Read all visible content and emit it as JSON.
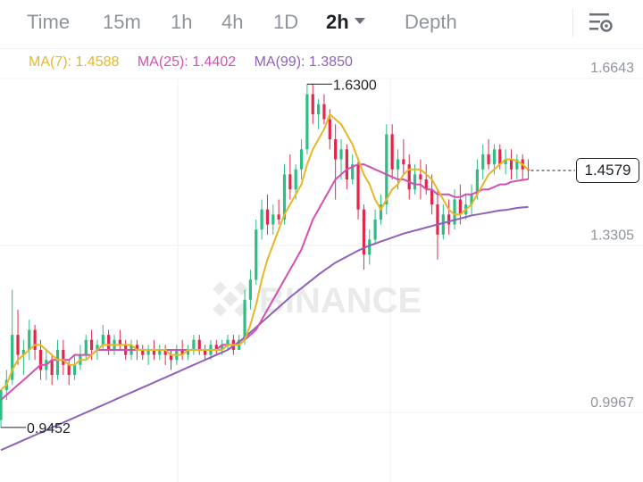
{
  "tabs": [
    {
      "label": "Time",
      "active": false
    },
    {
      "label": "15m",
      "active": false
    },
    {
      "label": "1h",
      "active": false
    },
    {
      "label": "4h",
      "active": false
    },
    {
      "label": "1D",
      "active": false
    },
    {
      "label": "2h",
      "active": true
    },
    {
      "label": "Depth",
      "active": false
    }
  ],
  "settings_icon": "chart-settings-icon",
  "ma_indicators": [
    {
      "label": "MA(7): 1.4588",
      "color": "#e8b726"
    },
    {
      "label": "MA(25): 1.4402",
      "color": "#d44fb4"
    },
    {
      "label": "MA(99): 1.3850",
      "color": "#8f62b8"
    }
  ],
  "watermark": "BINANCE",
  "current_price": "1.4579",
  "colors": {
    "up": "#2ebd85",
    "down": "#e0294a",
    "ma7": "#e8b726",
    "ma25": "#d44fb4",
    "ma99": "#8f62b8"
  },
  "chart_data": {
    "type": "candlestick",
    "y_axis_ticks": [
      "1.6643",
      "1.3305",
      "0.9967"
    ],
    "annotations": [
      {
        "label": "1.6300",
        "kind": "high",
        "value": 1.63
      },
      {
        "label": "0.9452",
        "kind": "low",
        "value": 0.9452
      }
    ],
    "current_price": 1.4579,
    "ohlc": [
      [
        0.96,
        1.02,
        0.945,
        1.02
      ],
      [
        1.02,
        1.06,
        1.0,
        1.04
      ],
      [
        1.04,
        1.22,
        1.03,
        1.13
      ],
      [
        1.13,
        1.18,
        1.07,
        1.09
      ],
      [
        1.09,
        1.12,
        1.05,
        1.1
      ],
      [
        1.1,
        1.16,
        1.08,
        1.14
      ],
      [
        1.14,
        1.15,
        1.08,
        1.1
      ],
      [
        1.1,
        1.12,
        1.04,
        1.06
      ],
      [
        1.06,
        1.1,
        1.04,
        1.08
      ],
      [
        1.08,
        1.09,
        1.03,
        1.05
      ],
      [
        1.05,
        1.12,
        1.04,
        1.1
      ],
      [
        1.1,
        1.12,
        1.05,
        1.07
      ],
      [
        1.07,
        1.08,
        1.03,
        1.05
      ],
      [
        1.05,
        1.09,
        1.04,
        1.07
      ],
      [
        1.07,
        1.11,
        1.06,
        1.09
      ],
      [
        1.09,
        1.13,
        1.08,
        1.12
      ],
      [
        1.12,
        1.14,
        1.08,
        1.1
      ],
      [
        1.1,
        1.12,
        1.08,
        1.11
      ],
      [
        1.11,
        1.15,
        1.1,
        1.13
      ],
      [
        1.13,
        1.14,
        1.09,
        1.1
      ],
      [
        1.1,
        1.13,
        1.09,
        1.12
      ],
      [
        1.12,
        1.14,
        1.1,
        1.11
      ],
      [
        1.11,
        1.12,
        1.08,
        1.09
      ],
      [
        1.09,
        1.12,
        1.08,
        1.11
      ],
      [
        1.11,
        1.12,
        1.08,
        1.1
      ],
      [
        1.1,
        1.11,
        1.08,
        1.09
      ],
      [
        1.09,
        1.11,
        1.07,
        1.1
      ],
      [
        1.1,
        1.12,
        1.08,
        1.09
      ],
      [
        1.09,
        1.11,
        1.08,
        1.1
      ],
      [
        1.1,
        1.11,
        1.07,
        1.09
      ],
      [
        1.09,
        1.1,
        1.06,
        1.08
      ],
      [
        1.08,
        1.11,
        1.07,
        1.1
      ],
      [
        1.1,
        1.12,
        1.08,
        1.09
      ],
      [
        1.09,
        1.11,
        1.08,
        1.1
      ],
      [
        1.1,
        1.13,
        1.09,
        1.12
      ],
      [
        1.12,
        1.13,
        1.09,
        1.1
      ],
      [
        1.1,
        1.11,
        1.08,
        1.09
      ],
      [
        1.09,
        1.12,
        1.08,
        1.11
      ],
      [
        1.11,
        1.12,
        1.09,
        1.1
      ],
      [
        1.1,
        1.12,
        1.09,
        1.11
      ],
      [
        1.11,
        1.13,
        1.1,
        1.12
      ],
      [
        1.12,
        1.13,
        1.09,
        1.1
      ],
      [
        1.1,
        1.13,
        1.1,
        1.12
      ],
      [
        1.12,
        1.22,
        1.11,
        1.2
      ],
      [
        1.2,
        1.26,
        1.18,
        1.24
      ],
      [
        1.24,
        1.36,
        1.23,
        1.34
      ],
      [
        1.34,
        1.4,
        1.32,
        1.38
      ],
      [
        1.38,
        1.41,
        1.33,
        1.35
      ],
      [
        1.35,
        1.39,
        1.33,
        1.37
      ],
      [
        1.37,
        1.4,
        1.35,
        1.36
      ],
      [
        1.36,
        1.47,
        1.35,
        1.45
      ],
      [
        1.45,
        1.49,
        1.4,
        1.42
      ],
      [
        1.42,
        1.47,
        1.4,
        1.46
      ],
      [
        1.46,
        1.52,
        1.44,
        1.5
      ],
      [
        1.5,
        1.63,
        1.49,
        1.61
      ],
      [
        1.61,
        1.63,
        1.55,
        1.57
      ],
      [
        1.57,
        1.6,
        1.54,
        1.59
      ],
      [
        1.59,
        1.61,
        1.55,
        1.56
      ],
      [
        1.56,
        1.58,
        1.5,
        1.52
      ],
      [
        1.52,
        1.55,
        1.4,
        1.48
      ],
      [
        1.48,
        1.52,
        1.44,
        1.5
      ],
      [
        1.5,
        1.51,
        1.42,
        1.44
      ],
      [
        1.44,
        1.49,
        1.43,
        1.47
      ],
      [
        1.47,
        1.48,
        1.36,
        1.38
      ],
      [
        1.38,
        1.39,
        1.26,
        1.29
      ],
      [
        1.29,
        1.34,
        1.27,
        1.32
      ],
      [
        1.32,
        1.38,
        1.31,
        1.36
      ],
      [
        1.36,
        1.41,
        1.35,
        1.39
      ],
      [
        1.39,
        1.55,
        1.37,
        1.53
      ],
      [
        1.53,
        1.55,
        1.44,
        1.46
      ],
      [
        1.46,
        1.5,
        1.42,
        1.48
      ],
      [
        1.48,
        1.52,
        1.45,
        1.47
      ],
      [
        1.47,
        1.49,
        1.4,
        1.42
      ],
      [
        1.42,
        1.47,
        1.41,
        1.45
      ],
      [
        1.45,
        1.48,
        1.4,
        1.44
      ],
      [
        1.44,
        1.47,
        1.41,
        1.42
      ],
      [
        1.42,
        1.45,
        1.37,
        1.39
      ],
      [
        1.39,
        1.42,
        1.28,
        1.33
      ],
      [
        1.33,
        1.39,
        1.32,
        1.37
      ],
      [
        1.37,
        1.4,
        1.33,
        1.35
      ],
      [
        1.35,
        1.42,
        1.34,
        1.4
      ],
      [
        1.4,
        1.43,
        1.35,
        1.37
      ],
      [
        1.37,
        1.41,
        1.36,
        1.39
      ],
      [
        1.39,
        1.43,
        1.37,
        1.41
      ],
      [
        1.41,
        1.48,
        1.4,
        1.46
      ],
      [
        1.46,
        1.51,
        1.44,
        1.49
      ],
      [
        1.49,
        1.52,
        1.46,
        1.47
      ],
      [
        1.47,
        1.51,
        1.45,
        1.5
      ],
      [
        1.5,
        1.51,
        1.46,
        1.47
      ],
      [
        1.47,
        1.5,
        1.45,
        1.48
      ],
      [
        1.48,
        1.5,
        1.44,
        1.46
      ],
      [
        1.46,
        1.49,
        1.44,
        1.48
      ],
      [
        1.48,
        1.49,
        1.44,
        1.46
      ],
      [
        1.46,
        1.48,
        1.44,
        1.4579
      ]
    ],
    "ma7": [
      1.02,
      1.03,
      1.06,
      1.08,
      1.09,
      1.1,
      1.11,
      1.11,
      1.1,
      1.09,
      1.08,
      1.08,
      1.07,
      1.07,
      1.08,
      1.08,
      1.09,
      1.1,
      1.11,
      1.11,
      1.11,
      1.11,
      1.11,
      1.11,
      1.1,
      1.1,
      1.1,
      1.1,
      1.1,
      1.1,
      1.09,
      1.09,
      1.09,
      1.1,
      1.1,
      1.1,
      1.1,
      1.1,
      1.1,
      1.1,
      1.11,
      1.11,
      1.11,
      1.12,
      1.15,
      1.19,
      1.24,
      1.28,
      1.31,
      1.34,
      1.37,
      1.39,
      1.41,
      1.43,
      1.47,
      1.5,
      1.52,
      1.54,
      1.57,
      1.56,
      1.55,
      1.53,
      1.51,
      1.48,
      1.45,
      1.43,
      1.4,
      1.38,
      1.4,
      1.42,
      1.43,
      1.45,
      1.46,
      1.46,
      1.46,
      1.45,
      1.44,
      1.42,
      1.4,
      1.38,
      1.37,
      1.37,
      1.38,
      1.39,
      1.41,
      1.43,
      1.45,
      1.46,
      1.47,
      1.48,
      1.48,
      1.477,
      1.47,
      1.4588
    ],
    "ma25": [
      1.0,
      1.01,
      1.02,
      1.03,
      1.04,
      1.05,
      1.06,
      1.07,
      1.07,
      1.08,
      1.08,
      1.08,
      1.08,
      1.09,
      1.09,
      1.09,
      1.09,
      1.1,
      1.1,
      1.1,
      1.1,
      1.1,
      1.1,
      1.1,
      1.1,
      1.1,
      1.1,
      1.1,
      1.1,
      1.1,
      1.1,
      1.1,
      1.1,
      1.1,
      1.1,
      1.1,
      1.1,
      1.1,
      1.1,
      1.11,
      1.11,
      1.11,
      1.11,
      1.12,
      1.13,
      1.14,
      1.16,
      1.18,
      1.2,
      1.22,
      1.24,
      1.26,
      1.28,
      1.3,
      1.33,
      1.36,
      1.38,
      1.4,
      1.42,
      1.44,
      1.45,
      1.46,
      1.465,
      1.47,
      1.47,
      1.465,
      1.46,
      1.455,
      1.45,
      1.445,
      1.44,
      1.44,
      1.435,
      1.43,
      1.43,
      1.42,
      1.42,
      1.41,
      1.41,
      1.41,
      1.405,
      1.405,
      1.41,
      1.41,
      1.415,
      1.42,
      1.42,
      1.425,
      1.43,
      1.43,
      1.435,
      1.437,
      1.439,
      1.4402
    ],
    "ma99": [
      0.9,
      0.905,
      0.91,
      0.915,
      0.92,
      0.925,
      0.93,
      0.935,
      0.94,
      0.945,
      0.95,
      0.955,
      0.96,
      0.965,
      0.97,
      0.975,
      0.98,
      0.985,
      0.99,
      0.995,
      1.0,
      1.005,
      1.01,
      1.015,
      1.02,
      1.025,
      1.03,
      1.035,
      1.04,
      1.045,
      1.05,
      1.055,
      1.06,
      1.065,
      1.07,
      1.075,
      1.08,
      1.085,
      1.09,
      1.095,
      1.1,
      1.108,
      1.116,
      1.125,
      1.135,
      1.145,
      1.155,
      1.165,
      1.175,
      1.185,
      1.195,
      1.205,
      1.214,
      1.223,
      1.232,
      1.241,
      1.25,
      1.258,
      1.266,
      1.274,
      1.28,
      1.286,
      1.292,
      1.298,
      1.303,
      1.308,
      1.312,
      1.316,
      1.32,
      1.324,
      1.328,
      1.332,
      1.335,
      1.338,
      1.341,
      1.344,
      1.347,
      1.35,
      1.353,
      1.356,
      1.359,
      1.362,
      1.365,
      1.368,
      1.37,
      1.372,
      1.374,
      1.376,
      1.378,
      1.379,
      1.381,
      1.383,
      1.384,
      1.385
    ]
  }
}
